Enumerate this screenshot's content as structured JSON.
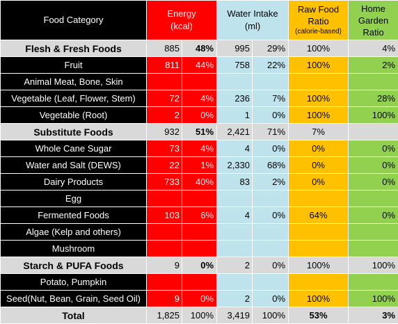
{
  "header": {
    "food_category": "Food Category",
    "energy": "Energy",
    "energy_unit": "(kcal)",
    "water": "Water Intake",
    "water_unit": "(ml)",
    "raw": "Raw Food Ratio",
    "raw_sub": "(calorie-based)",
    "garden": "Home Garden Ratio"
  },
  "rows": [
    {
      "name": "Flesh & Fresh Foods",
      "e": "885",
      "ep": "48%",
      "w": "995",
      "wp": "29%",
      "r": "100%",
      "g": "4%"
    },
    {
      "name": "Fruit",
      "e": "811",
      "ep": "44%",
      "w": "758",
      "wp": "22%",
      "r": "100%",
      "g": "2%"
    },
    {
      "name": "Animal Meat, Bone, Skin",
      "e": "",
      "ep": "",
      "w": "",
      "wp": "",
      "r": "",
      "g": ""
    },
    {
      "name": "Vegetable (Leaf, Flower, Stem)",
      "e": "72",
      "ep": "4%",
      "w": "236",
      "wp": "7%",
      "r": "100%",
      "g": "28%"
    },
    {
      "name": "Vegetable (Root)",
      "e": "2",
      "ep": "0%",
      "w": "1",
      "wp": "0%",
      "r": "100%",
      "g": "100%"
    },
    {
      "name": "Substitute Foods",
      "e": "932",
      "ep": "51%",
      "w": "2,421",
      "wp": "71%",
      "r": "7%",
      "g": ""
    },
    {
      "name": "Whole Cane Sugar",
      "e": "73",
      "ep": "4%",
      "w": "4",
      "wp": "0%",
      "r": "0%",
      "g": "0%"
    },
    {
      "name": "Water and Salt (DEWS)",
      "e": "22",
      "ep": "1%",
      "w": "2,330",
      "wp": "68%",
      "r": "0%",
      "g": "0%"
    },
    {
      "name": "Dairy Products",
      "e": "733",
      "ep": "40%",
      "w": "83",
      "wp": "2%",
      "r": "0%",
      "g": "0%"
    },
    {
      "name": "Egg",
      "e": "",
      "ep": "",
      "w": "",
      "wp": "",
      "r": "",
      "g": ""
    },
    {
      "name": "Fermented Foods",
      "e": "103",
      "ep": "6%",
      "w": "4",
      "wp": "0%",
      "r": "64%",
      "g": "0%"
    },
    {
      "name": "Algae (Kelp and others)",
      "e": "",
      "ep": "",
      "w": "",
      "wp": "",
      "r": "",
      "g": ""
    },
    {
      "name": "Mushroom",
      "e": "",
      "ep": "",
      "w": "",
      "wp": "",
      "r": "",
      "g": ""
    },
    {
      "name": "Starch & PUFA Foods",
      "e": "9",
      "ep": "0%",
      "w": "2",
      "wp": "0%",
      "r": "100%",
      "g": "100%"
    },
    {
      "name": "Potato, Pumpkin",
      "e": "",
      "ep": "",
      "w": "",
      "wp": "",
      "r": "",
      "g": ""
    },
    {
      "name": "Seed(Nut, Bean, Grain, Seed Oil)",
      "e": "9",
      "ep": "0%",
      "w": "2",
      "wp": "0%",
      "r": "100%",
      "g": "100%"
    },
    {
      "name": "Total",
      "e": "1,825",
      "ep": "100%",
      "w": "3,419",
      "wp": "100%",
      "r": "53%",
      "g": "3%"
    }
  ],
  "colors": {
    "energy": "#ff0000",
    "water": "#bfe3ec",
    "raw": "#ffc000",
    "garden": "#92d050",
    "section": "#d9d9d9",
    "category": "#000000"
  }
}
